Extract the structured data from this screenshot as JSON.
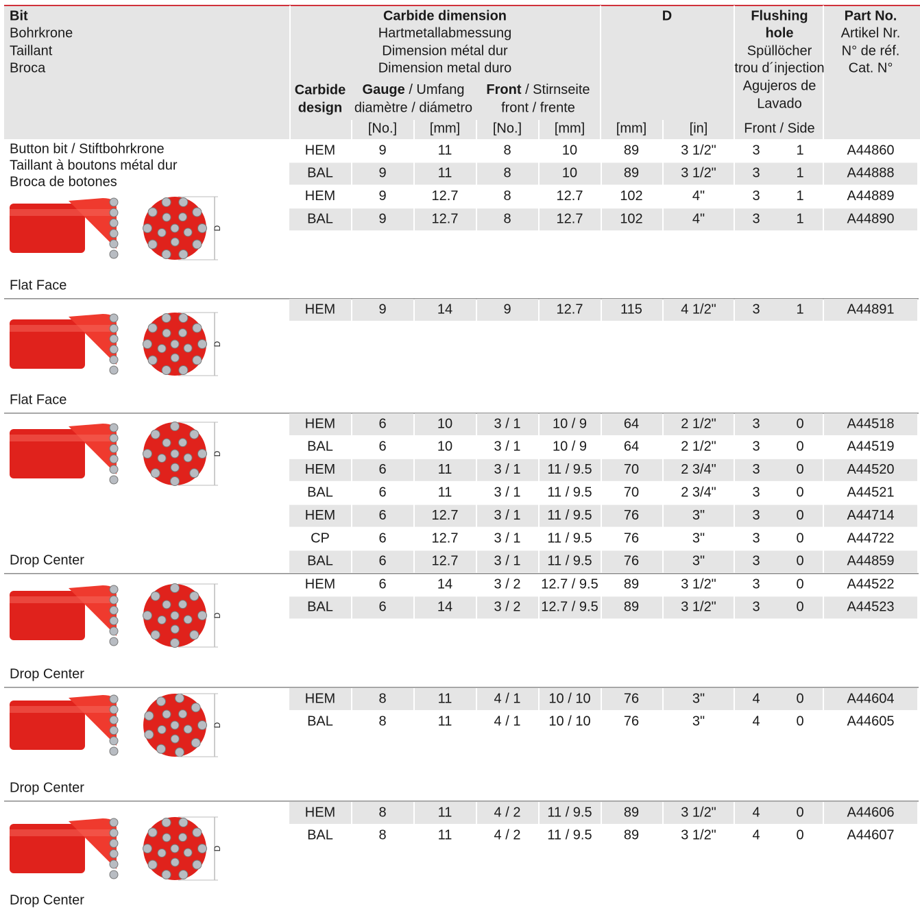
{
  "header": {
    "bit": [
      "Bit",
      "Bohrkrone",
      "Taillant",
      "Broca"
    ],
    "carbide_dimension": [
      "Carbide dimension",
      "Hartmetallabmessung",
      "Dimension métal dur",
      "Dimension metal duro"
    ],
    "carbide_design": [
      "Carbide",
      "design"
    ],
    "gauge": {
      "bold": "Gauge",
      "rest": " / Umfang",
      "line2": "diamètre / diámetro"
    },
    "front": {
      "bold": "Front",
      "rest": " / Stirnseite",
      "line2": "front / frente"
    },
    "d": "D",
    "flushing_hole": [
      "Flushing",
      "hole",
      "Spüllöcher",
      "trou d´injection",
      "Agujeros de",
      "Lavado"
    ],
    "part_no": [
      "Part No.",
      "Artikel Nr.",
      "N° de réf.",
      "Cat. N°"
    ],
    "units": [
      "[No.]",
      "[mm]",
      "[No.]",
      "[mm]",
      "[mm]",
      "[in]"
    ],
    "flushing_units": "Front / Side"
  },
  "drawing_label": "D",
  "groups": [
    {
      "description": [
        "Button bit / Stiftbohrkrone",
        "Taillant à boutons métal dur",
        "Broca de botones"
      ],
      "face": "Flat Face",
      "rows": [
        [
          "HEM",
          "9",
          "11",
          "8",
          "10",
          "89",
          "3 1/2\"",
          "3",
          "1",
          "A44860"
        ],
        [
          "BAL",
          "9",
          "11",
          "8",
          "10",
          "89",
          "3 1/2\"",
          "3",
          "1",
          "A44888"
        ],
        [
          "HEM",
          "9",
          "12.7",
          "8",
          "12.7",
          "102",
          "4\"",
          "3",
          "1",
          "A44889"
        ],
        [
          "BAL",
          "9",
          "12.7",
          "8",
          "12.7",
          "102",
          "4\"",
          "3",
          "1",
          "A44890"
        ]
      ]
    },
    {
      "face": "Flat Face",
      "rows": [
        [
          "HEM",
          "9",
          "14",
          "9",
          "12.7",
          "115",
          "4 1/2\"",
          "3",
          "1",
          "A44891"
        ]
      ]
    },
    {
      "face": "Drop Center",
      "rows": [
        [
          "HEM",
          "6",
          "10",
          "3 / 1",
          "10 / 9",
          "64",
          "2 1/2\"",
          "3",
          "0",
          "A44518"
        ],
        [
          "BAL",
          "6",
          "10",
          "3 / 1",
          "10 / 9",
          "64",
          "2 1/2\"",
          "3",
          "0",
          "A44519"
        ],
        [
          "HEM",
          "6",
          "11",
          "3 / 1",
          "11 / 9.5",
          "70",
          "2 3/4\"",
          "3",
          "0",
          "A44520"
        ],
        [
          "BAL",
          "6",
          "11",
          "3 / 1",
          "11 / 9.5",
          "70",
          "2 3/4\"",
          "3",
          "0",
          "A44521"
        ],
        [
          "HEM",
          "6",
          "12.7",
          "3 / 1",
          "11 / 9.5",
          "76",
          "3\"",
          "3",
          "0",
          "A44714"
        ],
        [
          "CP",
          "6",
          "12.7",
          "3 / 1",
          "11 / 9.5",
          "76",
          "3\"",
          "3",
          "0",
          "A44722"
        ],
        [
          "BAL",
          "6",
          "12.7",
          "3 / 1",
          "11 / 9.5",
          "76",
          "3\"",
          "3",
          "0",
          "A44859"
        ]
      ]
    },
    {
      "face": "Drop Center",
      "rows": [
        [
          "HEM",
          "6",
          "14",
          "3 / 2",
          "12.7 / 9.5",
          "89",
          "3 1/2\"",
          "3",
          "0",
          "A44522"
        ],
        [
          "BAL",
          "6",
          "14",
          "3 / 2",
          "12.7 / 9.5",
          "89",
          "3 1/2\"",
          "3",
          "0",
          "A44523"
        ]
      ]
    },
    {
      "face": "Drop Center",
      "rows": [
        [
          "HEM",
          "8",
          "11",
          "4 / 1",
          "10 / 10",
          "76",
          "3\"",
          "4",
          "0",
          "A44604"
        ],
        [
          "BAL",
          "8",
          "11",
          "4 / 1",
          "10 / 10",
          "76",
          "3\"",
          "4",
          "0",
          "A44605"
        ]
      ]
    },
    {
      "face": "Drop Center",
      "rows": [
        [
          "HEM",
          "8",
          "11",
          "4 / 2",
          "11 / 9.5",
          "89",
          "3 1/2\"",
          "4",
          "0",
          "A44606"
        ],
        [
          "BAL",
          "8",
          "11",
          "4 / 2",
          "11 / 9.5",
          "89",
          "3 1/2\"",
          "4",
          "0",
          "A44607"
        ]
      ]
    }
  ]
}
